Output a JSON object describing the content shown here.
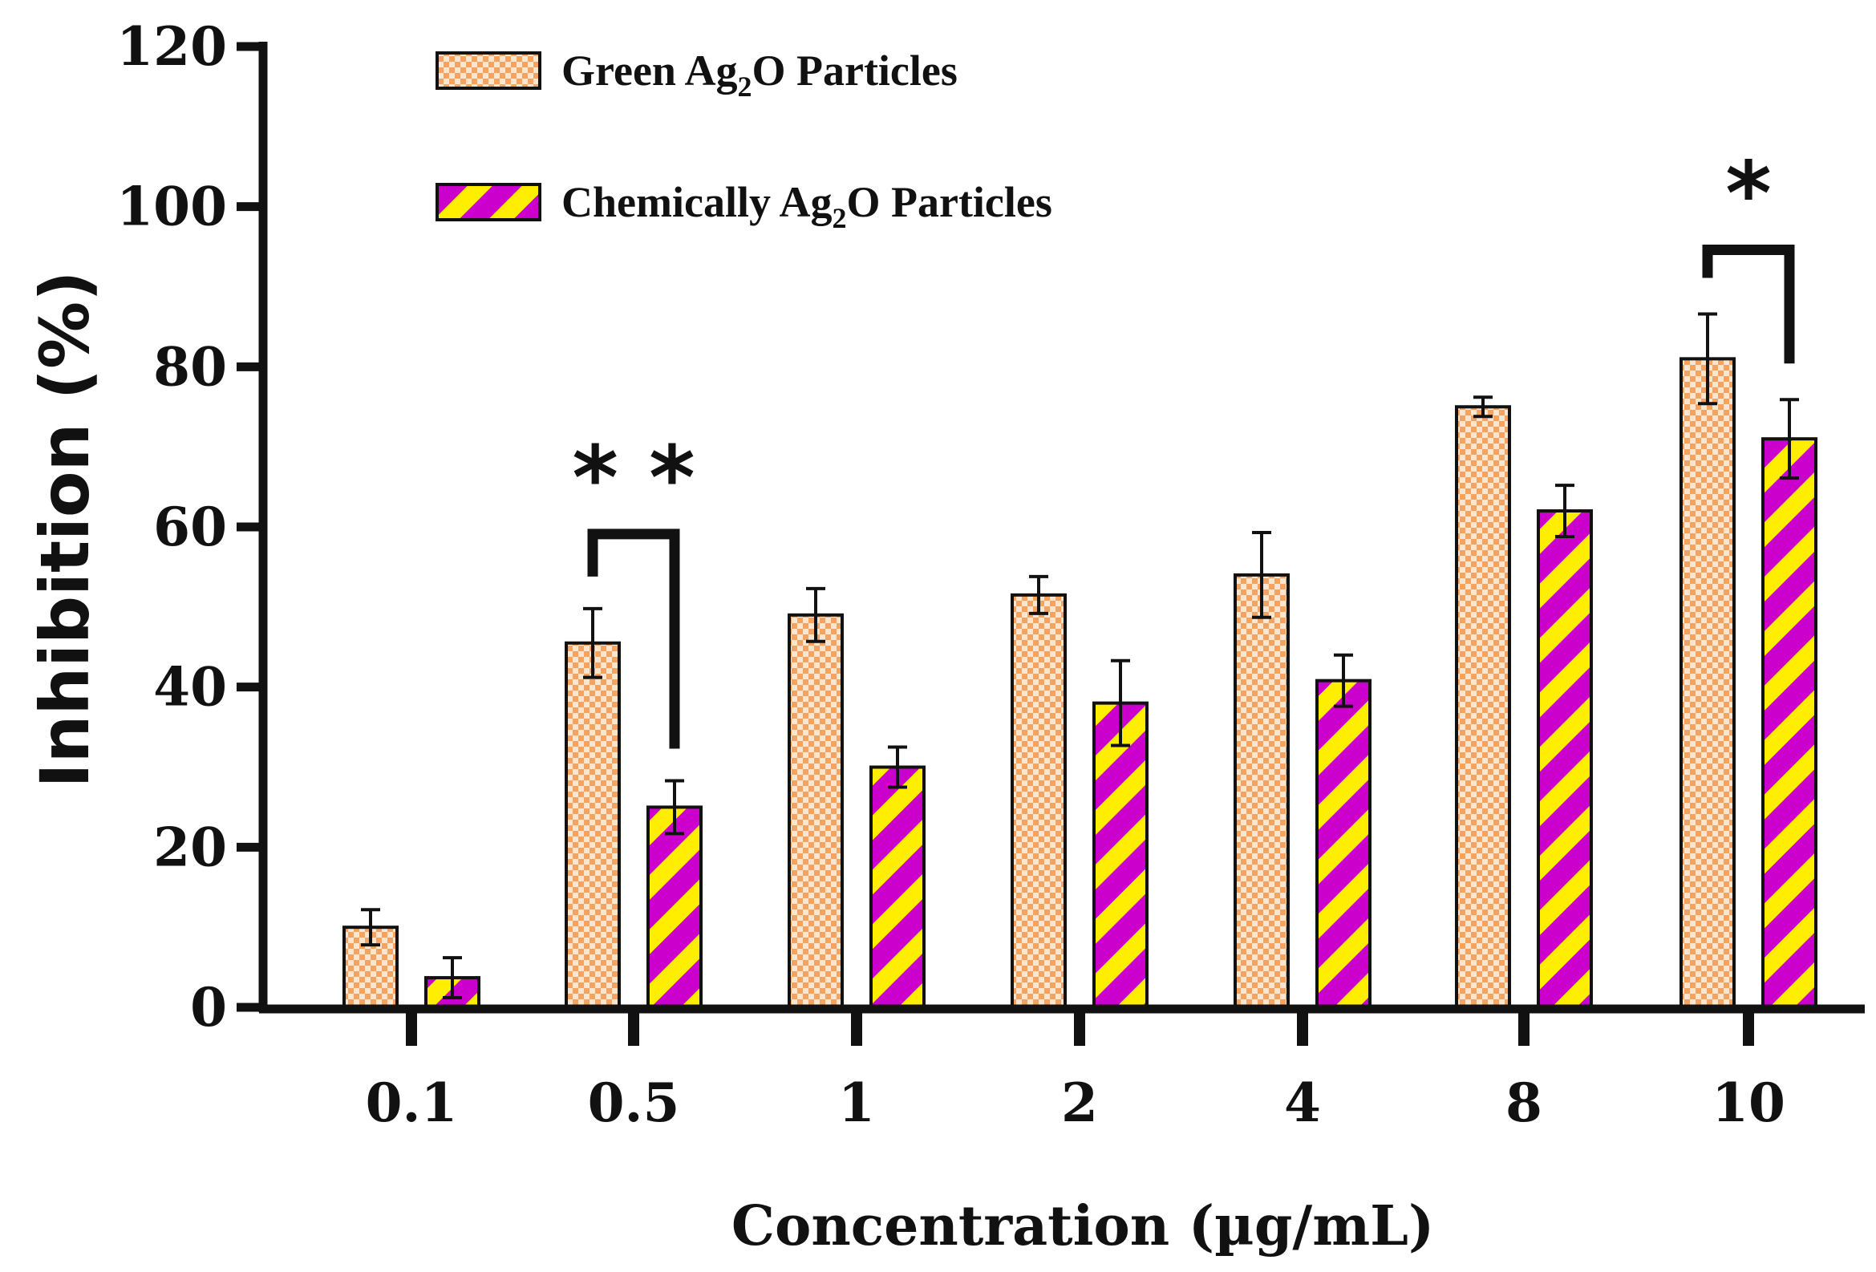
{
  "chart_data": {
    "type": "bar",
    "title": "",
    "xlabel": "Concentration (µg/mL)",
    "ylabel": "Inhibition (%)",
    "ylim": [
      0,
      120
    ],
    "yticks": [
      "0",
      "20",
      "40",
      "60",
      "80",
      "100",
      "120"
    ],
    "grid": false,
    "legend_position": "top-left",
    "categories": [
      "0.1",
      "0.5",
      "1",
      "2",
      "4",
      "8",
      "10"
    ],
    "series": [
      {
        "name": "Green Ag2O Particles",
        "legend_main": "Green Ag",
        "legend_sub": "2",
        "legend_rest": "O Particles",
        "pattern": "checker",
        "color": "#f4a460",
        "values": [
          10,
          45.5,
          49,
          51.5,
          54,
          75,
          81
        ],
        "errors": [
          2.2,
          4.3,
          3.3,
          2.3,
          5.3,
          1.2,
          5.6
        ]
      },
      {
        "name": "Chemically Ag2O Particles",
        "legend_main": "Chemically Ag",
        "legend_sub": "2",
        "legend_rest": "O Particles",
        "pattern": "stripes",
        "color": "#cc00cc",
        "color2": "#ffee00",
        "values": [
          3.7,
          25,
          30,
          38,
          40.8,
          62,
          71
        ],
        "errors": [
          2.5,
          3.3,
          2.5,
          5.3,
          3.2,
          3.2,
          4.9
        ]
      }
    ],
    "significance": [
      {
        "category": "0.5",
        "label": "* *"
      },
      {
        "category": "10",
        "label": "*"
      }
    ]
  }
}
